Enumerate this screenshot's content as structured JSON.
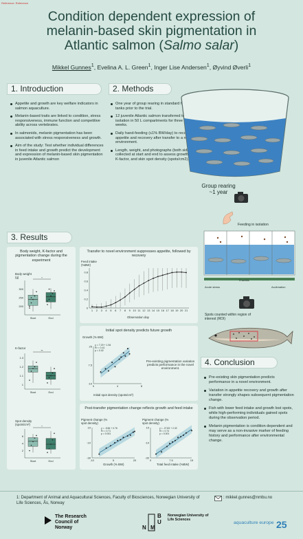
{
  "reference_tag": "Reference: Reference",
  "title": {
    "line1": "Condition dependent expression of",
    "line2": "melanin-based skin pigmentation in",
    "line3_a": "Atlantic salmon (",
    "line3_it": "Salmo salar",
    "line3_b": ")"
  },
  "authors": {
    "a1": "Mikkel Gunnes",
    "a2": "Evelina A. L. Green",
    "a3": "Inger Lise Andersen",
    "a4": "Øyvind Øverli",
    "sup": "1"
  },
  "intro": {
    "header": "1. Introduction",
    "bullets": [
      "Appetite and growth are key welfare indicators in salmon aquaculture.",
      "Melanin-based traits are linked to condition, stress responsiveness, immune function and competitive ability across vertebrates.",
      "In salmonids, melanin pigmentation has been associated with stress responsiveness and growth.",
      "Aim of the study: Test whether individual differences in feed intake and growth predict the development and expression of melanin-based skin pigmentation in juvenile Atlantic salmon"
    ]
  },
  "methods": {
    "header": "2. Methods",
    "bullets": [
      "One year of group rearing in standard holding tanks prior to the trial.",
      "12 juvenile Atlantic salmon transferred to isolation in 50 L compartments for three weeks.",
      "Daily hand-feeding (≤1% BW/day) to record appetite and recovery after transfer to a novel environment.",
      "Length, weight, and photographs (both sides) collected at start and end to assess growth, K-factor, and skin spot density (spots/cm2)."
    ],
    "group_rearing": "Group rearing",
    "year": "~1 year",
    "feeding": "Feeding in isolation",
    "weeks": "3 weeks",
    "acute": "Acute stress",
    "accl": "Acclimation",
    "spots_counted": "Spots counted within region of interest (ROI)"
  },
  "results": {
    "header": "3. Results",
    "box_title": "Body weight, K-factor and pigmentation change during the experiment",
    "bw_label": "Body weight (g)",
    "kf_label": "K-factor",
    "sd_label": "Spot density (spots/cm²)",
    "start": "Start",
    "end": "End",
    "sig1": "*",
    "sig2": "**",
    "sig3": "*",
    "feed_title": "Transfer to novel environment suppresses appetite, followed by recovery",
    "feed_ylabel": "Feed intake (%BW)",
    "feed_xlabel": "Observation day",
    "spot_title": "Initial spot density predicts future growth",
    "spot_ylabel": "Growth (% BW)",
    "spot_xlabel": "Initial spot density (spots/cm²)",
    "spot_note": "Pre-existing pigmentation variation predicts performance in the novel environment.",
    "spot_stats": "y = 7.29 + 1.54\nR² = 0.41\np = 0.02",
    "pc_title": "Post-transfer pigmentation change reflects growth and feed intake",
    "pc_ylabel": "Pigment change (% spot density)",
    "pc_xlabel1": "Growth (% BW)",
    "pc_xlabel2": "Total feed intake (%BW)",
    "pc_stats1": "y = -5.56 + 0.76\nR² = 0.71\np = 0.001",
    "pc_stats2": "y = -27.83 + 2.32\nR² = 0.74\np = 0.001"
  },
  "conclusion": {
    "header": "4. Conclusion",
    "bullets": [
      "Pre-existing skin pigmentation predicts performance in a novel environment.",
      "Variation in appetite recovery and growth after transfer strongly shapes subsequent pigmentation change.",
      "Fish with lower feed intake and growth lost spots, while high-performing individuals gained spots during the observation period.",
      "Melanin pigmentation is condition dependent and may serve as a non-invasive marker of feeding history and performance after environmental change."
    ]
  },
  "footer": {
    "affiliation": "1: Department of Animal and Aquacultural Sciences, Faculty of Biosciences, Norwegian University of Life Sciences, Ås, Norway",
    "email": ": mikkel.gunnes@nmbu.no",
    "rcn": "The Research Council of Norway",
    "nmbu": "Norwegian University of Life Sciences",
    "aqua": "aquaculture europe",
    "aqua_year": "25"
  },
  "chart_data": [
    {
      "type": "box",
      "title": "Body weight",
      "categories": [
        "Start",
        "End"
      ],
      "ylim": [
        150,
        350
      ],
      "yticks": [
        200,
        250,
        300
      ]
    },
    {
      "type": "box",
      "title": "K-factor",
      "categories": [
        "Start",
        "End"
      ],
      "ylim": [
        0.95,
        1.35
      ],
      "yticks": [
        1.0,
        1.1,
        1.2,
        1.3
      ]
    },
    {
      "type": "box",
      "title": "Spot density",
      "categories": [
        "Start",
        "End"
      ],
      "ylim": [
        0,
        8
      ],
      "yticks": [
        2,
        4,
        6
      ]
    },
    {
      "type": "line",
      "title": "Transfer to novel environment suppresses appetite, followed by recovery",
      "x": [
        1,
        2,
        3,
        4,
        5,
        6,
        7,
        8,
        9,
        10,
        11,
        12,
        13,
        14,
        15,
        16,
        17,
        18,
        19,
        20,
        21
      ],
      "values": [
        0.03,
        0.02,
        0.02,
        0.04,
        0.07,
        0.12,
        0.18,
        0.25,
        0.34,
        0.42,
        0.5,
        0.56,
        0.62,
        0.67,
        0.71,
        0.74,
        0.77,
        0.8,
        0.81,
        0.81,
        0.8
      ],
      "ylim": [
        0,
        0.9
      ],
      "yticks": [
        0,
        0.2,
        0.4,
        0.6,
        0.8
      ]
    },
    {
      "type": "scatter",
      "title": "Initial spot density predicts future growth",
      "x": [
        1.2,
        2.0,
        2.5,
        3.1,
        3.6,
        4.3,
        4.6,
        5.0,
        5.3,
        5.7,
        6.0
      ],
      "y": [
        1,
        4,
        2,
        10,
        6,
        13,
        15,
        19,
        16,
        23,
        18
      ],
      "xlim": [
        0,
        8
      ],
      "ylim": [
        -10,
        25
      ]
    },
    {
      "type": "scatter",
      "title": "Pigment change vs Growth",
      "x": [
        -5,
        0,
        3,
        6,
        8,
        10,
        12,
        15,
        17,
        19,
        20
      ],
      "y": [
        -25,
        -17,
        -14,
        -10,
        -7,
        -6,
        -3,
        -1,
        0,
        4,
        5
      ],
      "xlim": [
        -10,
        20
      ],
      "ylim": [
        -30,
        10
      ]
    },
    {
      "type": "scatter",
      "title": "Pigment change vs Total feed intake",
      "x": [
        2,
        4,
        6,
        7,
        8,
        9,
        10,
        11,
        12,
        13,
        15
      ],
      "y": [
        -25,
        -22,
        -15,
        -11,
        -9,
        -7,
        -3,
        -2,
        0,
        3,
        6
      ],
      "xlim": [
        0,
        15
      ],
      "ylim": [
        -30,
        10
      ]
    }
  ]
}
